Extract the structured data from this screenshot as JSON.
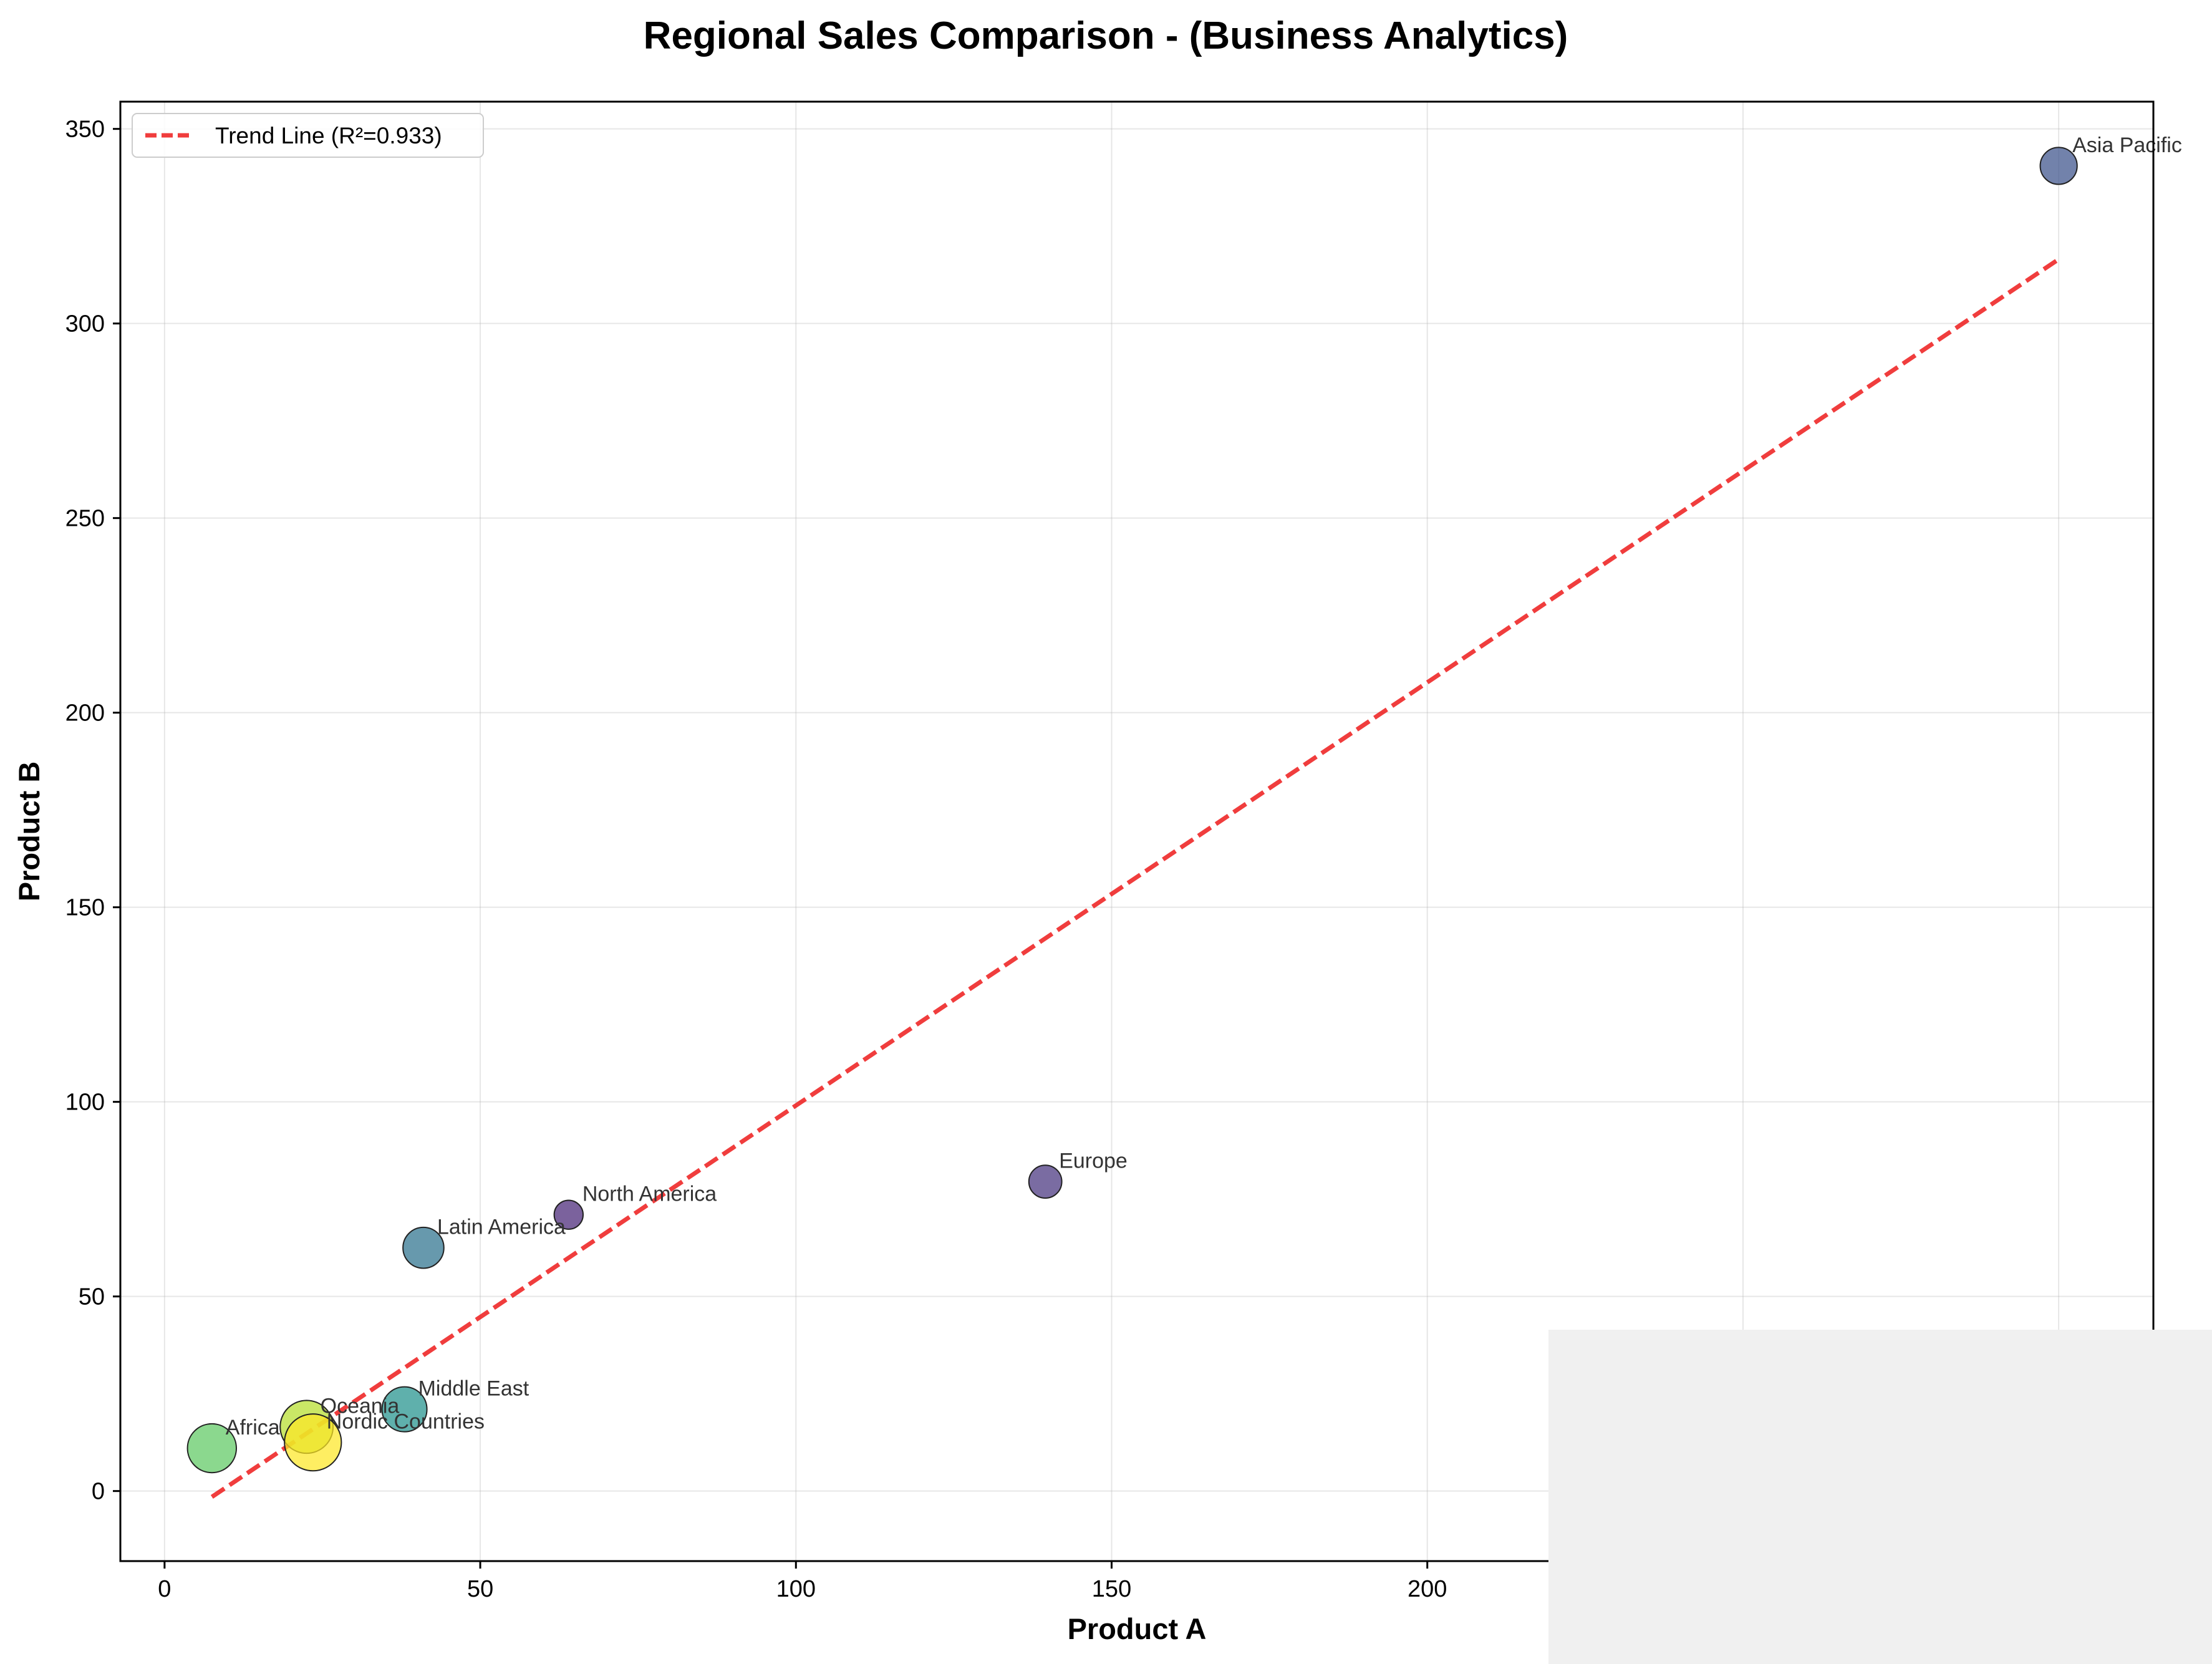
{
  "chart_data": {
    "type": "scatter",
    "title": "Regional Sales Comparison - (Business Analytics)",
    "xlabel": "Product A",
    "ylabel": "Product B",
    "xlim": [
      -7,
      315
    ],
    "ylim": [
      -18,
      357
    ],
    "xticks": [
      0,
      50,
      100,
      150,
      200
    ],
    "yticks": [
      0,
      50,
      100,
      150,
      200,
      250,
      300,
      350
    ],
    "grid": true,
    "legend_placement": "top-left",
    "points": [
      {
        "label": "North America",
        "x": 64,
        "y": 71,
        "size": 1,
        "color": "#482677"
      },
      {
        "label": "Europe",
        "x": 139.5,
        "y": 79.5,
        "size": 2,
        "color": "#46337e"
      },
      {
        "label": "Asia Pacific",
        "x": 300,
        "y": 340.5,
        "size": 3,
        "color": "#3b528b"
      },
      {
        "label": "Latin America",
        "x": 41,
        "y": 62.5,
        "size": 4,
        "color": "#2c728e"
      },
      {
        "label": "Middle East",
        "x": 38,
        "y": 21,
        "size": 5,
        "color": "#21918c"
      },
      {
        "label": "Africa",
        "x": 7.5,
        "y": 11,
        "size": 6,
        "color": "#5ec962"
      },
      {
        "label": "Oceania",
        "x": 22.5,
        "y": 16.5,
        "size": 7,
        "color": "#b5de2b"
      },
      {
        "label": "Nordic Countries",
        "x": 23.5,
        "y": 12.5,
        "size": 8,
        "color": "#fde725"
      }
    ],
    "trend_line": {
      "label": "Trend Line (R²=0.933)",
      "color": "#ee1c1c",
      "style": "dashed",
      "x_range": [
        7.5,
        300
      ],
      "y_range": [
        -1.5,
        316.5
      ]
    }
  }
}
